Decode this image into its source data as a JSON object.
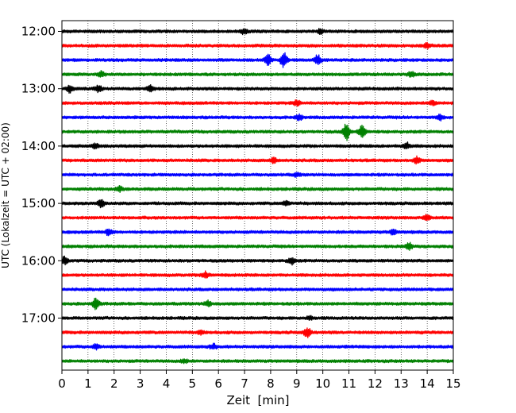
{
  "chart_data": {
    "type": "line",
    "title": "",
    "xlabel": "Zeit  [min]",
    "ylabel": "UTC (Lokalzeit = UTC + 02:00)",
    "xlim": [
      0,
      15
    ],
    "x_ticks": [
      0,
      1,
      2,
      3,
      4,
      5,
      6,
      7,
      8,
      9,
      10,
      11,
      12,
      13,
      14,
      15
    ],
    "x_tick_labels": [
      "0",
      "1",
      "2",
      "3",
      "4",
      "5",
      "6",
      "7",
      "8",
      "9",
      "10",
      "11",
      "12",
      "13",
      "14",
      "15"
    ],
    "y_tick_labels": [
      "12:00",
      "13:00",
      "14:00",
      "15:00",
      "16:00",
      "17:00"
    ],
    "y_tick_trace_index": [
      0,
      4,
      8,
      12,
      16,
      20
    ],
    "grid": "vertical dotted",
    "trace_colors": [
      "#000000",
      "#ff0000",
      "#0000ff",
      "#008000"
    ],
    "traces": [
      {
        "start": "12:00",
        "color": "#000000",
        "events": [
          {
            "x": 7.0,
            "amp": 3
          },
          {
            "x": 9.9,
            "amp": 3
          }
        ]
      },
      {
        "start": "12:15",
        "color": "#ff0000",
        "events": [
          {
            "x": 14.0,
            "amp": 3
          }
        ]
      },
      {
        "start": "12:30",
        "color": "#0000ff",
        "events": [
          {
            "x": 7.9,
            "amp": 6
          },
          {
            "x": 8.5,
            "amp": 9
          },
          {
            "x": 9.8,
            "amp": 6
          }
        ]
      },
      {
        "start": "12:45",
        "color": "#008000",
        "events": [
          {
            "x": 1.5,
            "amp": 3
          },
          {
            "x": 13.4,
            "amp": 3
          }
        ]
      },
      {
        "start": "13:00",
        "color": "#000000",
        "events": [
          {
            "x": 0.3,
            "amp": 4
          },
          {
            "x": 1.4,
            "amp": 4
          },
          {
            "x": 3.4,
            "amp": 4
          }
        ]
      },
      {
        "start": "13:15",
        "color": "#ff0000",
        "events": [
          {
            "x": 9.0,
            "amp": 3
          },
          {
            "x": 14.2,
            "amp": 3
          }
        ]
      },
      {
        "start": "13:30",
        "color": "#0000ff",
        "events": [
          {
            "x": 9.1,
            "amp": 3
          },
          {
            "x": 14.5,
            "amp": 3
          }
        ]
      },
      {
        "start": "13:45",
        "color": "#008000",
        "events": [
          {
            "x": 10.9,
            "amp": 10
          },
          {
            "x": 11.5,
            "amp": 7
          }
        ]
      },
      {
        "start": "14:00",
        "color": "#000000",
        "events": [
          {
            "x": 1.3,
            "amp": 3
          },
          {
            "x": 13.2,
            "amp": 4
          }
        ]
      },
      {
        "start": "14:15",
        "color": "#ff0000",
        "events": [
          {
            "x": 8.1,
            "amp": 3
          },
          {
            "x": 13.6,
            "amp": 4
          }
        ]
      },
      {
        "start": "14:30",
        "color": "#0000ff",
        "events": [
          {
            "x": 9.0,
            "amp": 2
          }
        ]
      },
      {
        "start": "14:45",
        "color": "#008000",
        "events": [
          {
            "x": 2.2,
            "amp": 3
          }
        ]
      },
      {
        "start": "15:00",
        "color": "#000000",
        "events": [
          {
            "x": 1.5,
            "amp": 5
          },
          {
            "x": 8.6,
            "amp": 3
          }
        ]
      },
      {
        "start": "15:15",
        "color": "#ff0000",
        "events": [
          {
            "x": 14.0,
            "amp": 4
          }
        ]
      },
      {
        "start": "15:30",
        "color": "#0000ff",
        "events": [
          {
            "x": 1.8,
            "amp": 4
          },
          {
            "x": 12.7,
            "amp": 3
          }
        ]
      },
      {
        "start": "15:45",
        "color": "#008000",
        "events": [
          {
            "x": 13.3,
            "amp": 4
          }
        ]
      },
      {
        "start": "16:00",
        "color": "#000000",
        "events": [
          {
            "x": 0.1,
            "amp": 4
          },
          {
            "x": 8.8,
            "amp": 4
          }
        ]
      },
      {
        "start": "16:15",
        "color": "#ff0000",
        "events": [
          {
            "x": 5.5,
            "amp": 4
          }
        ]
      },
      {
        "start": "16:30",
        "color": "#0000ff",
        "events": []
      },
      {
        "start": "16:45",
        "color": "#008000",
        "events": [
          {
            "x": 1.3,
            "amp": 7
          },
          {
            "x": 5.6,
            "amp": 3
          }
        ]
      },
      {
        "start": "17:00",
        "color": "#000000",
        "events": [
          {
            "x": 9.5,
            "amp": 2
          }
        ]
      },
      {
        "start": "17:15",
        "color": "#ff0000",
        "events": [
          {
            "x": 9.4,
            "amp": 6
          },
          {
            "x": 5.3,
            "amp": 2
          }
        ]
      },
      {
        "start": "17:30",
        "color": "#0000ff",
        "events": [
          {
            "x": 1.3,
            "amp": 3
          },
          {
            "x": 5.8,
            "amp": 3
          }
        ]
      },
      {
        "start": "17:45",
        "color": "#008000",
        "events": [
          {
            "x": 4.7,
            "amp": 2
          }
        ]
      }
    ]
  }
}
